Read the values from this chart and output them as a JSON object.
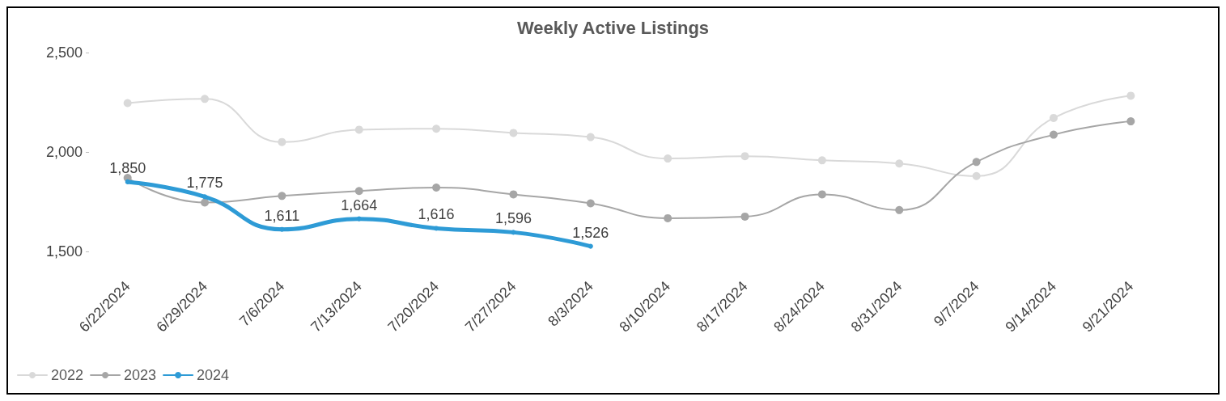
{
  "chart_data": {
    "type": "line",
    "title": "Weekly Active Listings",
    "categories": [
      "6/22/2024",
      "6/29/2024",
      "7/6/2024",
      "7/13/2024",
      "7/20/2024",
      "7/27/2024",
      "8/3/2024",
      "8/10/2024",
      "8/17/2024",
      "8/24/2024",
      "8/31/2024",
      "9/7/2024",
      "9/14/2024",
      "9/21/2024"
    ],
    "series": [
      {
        "name": "2022",
        "color": "#d9d9d9",
        "values": [
          2246,
          2267,
          2050,
          2112,
          2117,
          2096,
          2075,
          1967,
          1979,
          1958,
          1942,
          1879,
          2171,
          2283
        ]
      },
      {
        "name": "2023",
        "color": "#a6a6a6",
        "values": [
          1870,
          1746,
          1779,
          1804,
          1821,
          1787,
          1742,
          1667,
          1675,
          1787,
          1708,
          1950,
          2087,
          2154
        ]
      },
      {
        "name": "2024",
        "color": "#2e9bd6",
        "values": [
          1850,
          1775,
          1611,
          1664,
          1616,
          1596,
          1526,
          null,
          null,
          null,
          null,
          null,
          null,
          null
        ],
        "value_labels": [
          "1,850",
          "1,775",
          "1,611",
          "1,664",
          "1,616",
          "1,596",
          "1,526",
          null,
          null,
          null,
          null,
          null,
          null,
          null
        ]
      }
    ],
    "ylim": [
      1500,
      2500
    ],
    "yticks": [
      {
        "value": 1500,
        "label": "1,500"
      },
      {
        "value": 2000,
        "label": "2,000"
      },
      {
        "value": 2500,
        "label": "2,500"
      }
    ],
    "grid": false,
    "legend": "bottom left",
    "marker": "circle",
    "line_style": "solid"
  }
}
